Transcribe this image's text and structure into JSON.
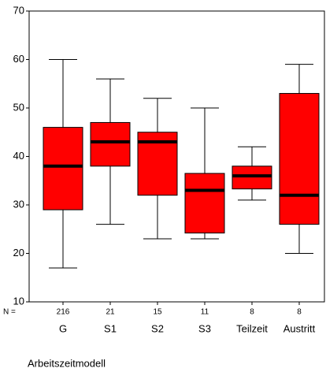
{
  "chart_data": {
    "type": "box",
    "x_label": "Arbeitszeitmodell",
    "categories": [
      "G",
      "S1",
      "S2",
      "S3",
      "Teilzeit",
      "Austritt"
    ],
    "n_label": "N =",
    "n": [
      216,
      21,
      15,
      11,
      8,
      8
    ],
    "low": [
      17,
      26,
      23,
      23,
      31,
      20
    ],
    "q1": [
      29,
      38,
      32,
      24.2,
      33.3,
      26
    ],
    "median": [
      38,
      43,
      43,
      33,
      36,
      32
    ],
    "q3": [
      46,
      47,
      45,
      36.5,
      38,
      53
    ],
    "high": [
      60,
      56,
      52,
      50,
      42,
      59
    ],
    "color": "#ff0000",
    "ylim": [
      10,
      70
    ],
    "yticks": [
      10,
      20,
      30,
      40,
      50,
      60,
      70
    ]
  }
}
